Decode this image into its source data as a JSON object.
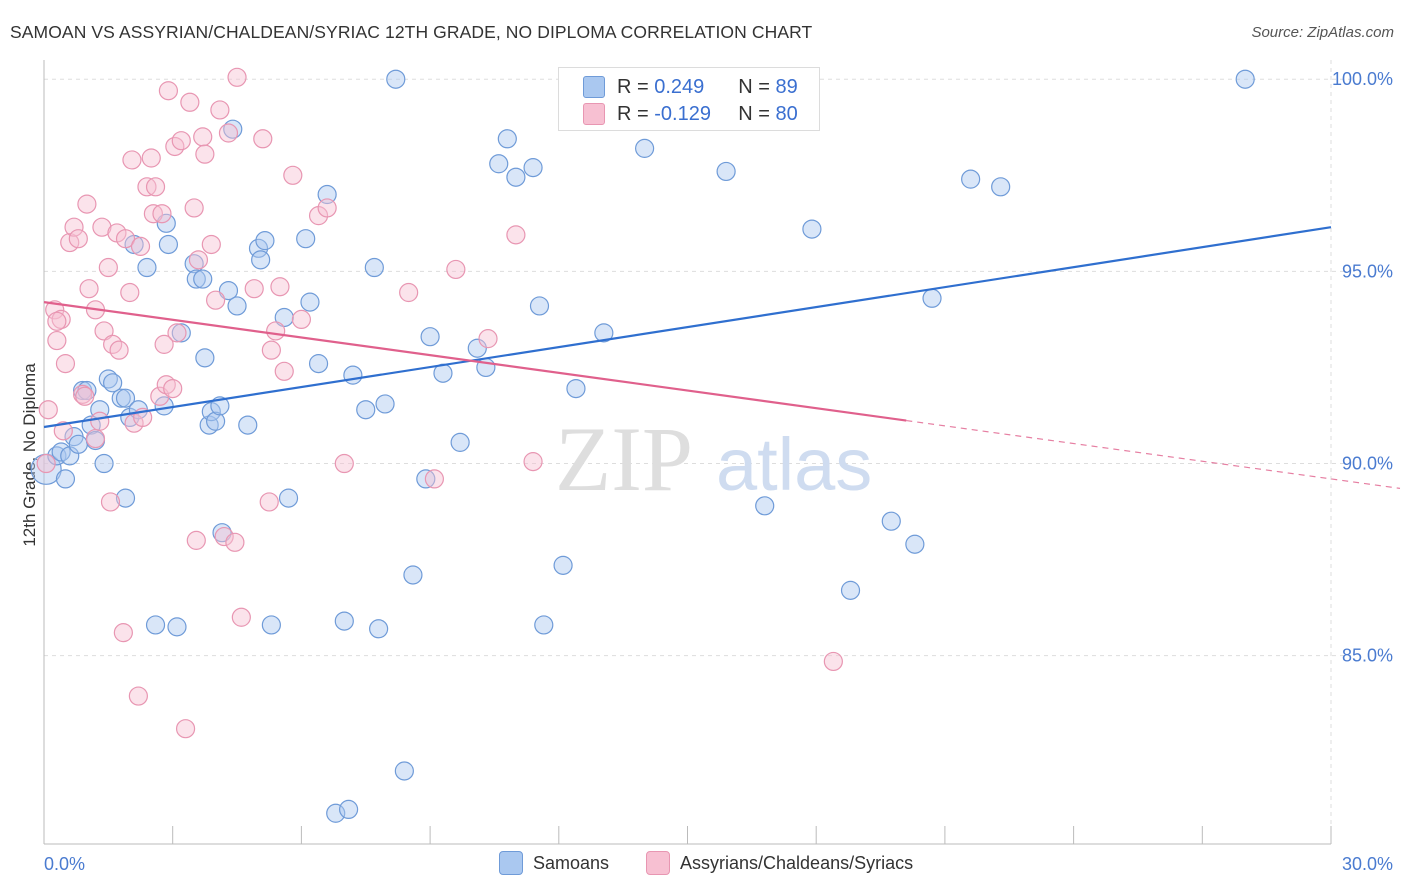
{
  "title": "SAMOAN VS ASSYRIAN/CHALDEAN/SYRIAC 12TH GRADE, NO DIPLOMA CORRELATION CHART",
  "source": "Source: ZipAtlas.com",
  "watermark": {
    "zip": "ZIP",
    "atlas": "atlas"
  },
  "colors": {
    "blue_fill": "#aac8f0",
    "blue_stroke": "#6f9bd8",
    "blue_line": "#2f6fcf",
    "pink_fill": "#f7c0d2",
    "pink_stroke": "#e896b2",
    "pink_line": "#e0608c",
    "tick_text": "#4a7bd0",
    "grid": "#dddddd"
  },
  "legend": {
    "rows": [
      {
        "r_label": "R =",
        "r_value": "0.249",
        "n_label": "N =",
        "n_value": "89",
        "color": "blue"
      },
      {
        "r_label": "R =",
        "r_value": "-0.129",
        "n_label": "N =",
        "n_value": "80",
        "color": "pink"
      }
    ]
  },
  "bottom_legend": [
    {
      "label": "Samoans",
      "color": "blue"
    },
    {
      "label": "Assyrians/Chaldeans/Syriacs",
      "color": "pink"
    }
  ],
  "chart_data": {
    "type": "scatter",
    "title": "SAMOAN VS ASSYRIAN/CHALDEAN/SYRIAC 12TH GRADE, NO DIPLOMA CORRELATION CHART",
    "xlabel": "",
    "ylabel": "12th Grade, No Diploma",
    "xlim": [
      0,
      30
    ],
    "ylim": [
      80.1,
      100.5
    ],
    "x_tick_labels": [
      {
        "value": 0,
        "label": "0.0%"
      },
      {
        "value": 30,
        "label": "30.0%"
      }
    ],
    "y_tick_labels": [
      {
        "value": 100,
        "label": "100.0%"
      },
      {
        "value": 95,
        "label": "95.0%"
      },
      {
        "value": 90,
        "label": "90.0%"
      },
      {
        "value": 85,
        "label": "85.0%"
      }
    ],
    "grid": true,
    "legend_position": "top-center",
    "series": [
      {
        "name": "Samoans",
        "color": "blue",
        "trend": {
          "x": [
            0,
            30
          ],
          "y": [
            90.95,
            96.15
          ],
          "dashed_from": null
        },
        "points": [
          [
            0.05,
            89.85
          ],
          [
            0.3,
            90.2
          ],
          [
            0.4,
            90.3
          ],
          [
            0.5,
            89.6
          ],
          [
            0.6,
            90.2
          ],
          [
            0.7,
            90.7
          ],
          [
            0.8,
            90.5
          ],
          [
            0.9,
            91.9
          ],
          [
            1.0,
            91.9
          ],
          [
            1.1,
            91.0
          ],
          [
            1.2,
            90.6
          ],
          [
            1.3,
            91.4
          ],
          [
            1.4,
            90.0
          ],
          [
            1.5,
            92.2
          ],
          [
            1.6,
            92.1
          ],
          [
            1.8,
            91.7
          ],
          [
            1.9,
            91.7
          ],
          [
            2.0,
            91.2
          ],
          [
            2.1,
            95.7
          ],
          [
            2.2,
            91.4
          ],
          [
            2.4,
            95.1
          ],
          [
            2.8,
            91.5
          ],
          [
            2.85,
            96.25
          ],
          [
            2.9,
            95.7
          ],
          [
            3.2,
            93.4
          ],
          [
            3.5,
            95.2
          ],
          [
            3.55,
            94.8
          ],
          [
            3.7,
            94.8
          ],
          [
            3.75,
            92.75
          ],
          [
            3.85,
            91.0
          ],
          [
            3.9,
            91.35
          ],
          [
            4.0,
            91.1
          ],
          [
            4.1,
            91.5
          ],
          [
            4.3,
            94.5
          ],
          [
            4.4,
            98.7
          ],
          [
            4.5,
            94.1
          ],
          [
            4.75,
            91.0
          ],
          [
            5.0,
            95.6
          ],
          [
            5.05,
            95.3
          ],
          [
            5.15,
            95.8
          ],
          [
            5.6,
            93.8
          ],
          [
            5.7,
            89.1
          ],
          [
            6.1,
            95.85
          ],
          [
            6.2,
            94.2
          ],
          [
            6.4,
            92.6
          ],
          [
            6.6,
            97.0
          ],
          [
            6.8,
            80.9
          ],
          [
            7.0,
            85.9
          ],
          [
            7.1,
            81.0
          ],
          [
            7.2,
            92.3
          ],
          [
            7.5,
            91.4
          ],
          [
            7.7,
            95.1
          ],
          [
            7.8,
            85.7
          ],
          [
            7.95,
            91.55
          ],
          [
            8.2,
            100.0
          ],
          [
            8.4,
            82.0
          ],
          [
            8.6,
            87.1
          ],
          [
            8.9,
            89.6
          ],
          [
            9.0,
            93.3
          ],
          [
            9.3,
            92.35
          ],
          [
            9.7,
            90.55
          ],
          [
            10.1,
            93.0
          ],
          [
            10.3,
            92.5
          ],
          [
            10.6,
            97.8
          ],
          [
            10.8,
            98.45
          ],
          [
            11.0,
            97.45
          ],
          [
            11.4,
            97.7
          ],
          [
            11.55,
            94.1
          ],
          [
            11.65,
            85.8
          ],
          [
            12.1,
            87.35
          ],
          [
            12.4,
            91.95
          ],
          [
            13.05,
            93.4
          ],
          [
            14.0,
            98.2
          ],
          [
            14.9,
            100.05
          ],
          [
            15.9,
            97.6
          ],
          [
            16.8,
            88.9
          ],
          [
            17.9,
            96.1
          ],
          [
            18.8,
            86.7
          ],
          [
            19.75,
            88.5
          ],
          [
            20.3,
            87.9
          ],
          [
            20.7,
            94.3
          ],
          [
            21.6,
            97.4
          ],
          [
            22.3,
            97.2
          ],
          [
            28.0,
            100.0
          ],
          [
            1.9,
            89.1
          ],
          [
            2.6,
            85.8
          ],
          [
            3.1,
            85.75
          ],
          [
            5.3,
            85.8
          ],
          [
            4.15,
            88.2
          ]
        ]
      },
      {
        "name": "Assyrians/Chaldeans/Syriacs",
        "color": "pink",
        "trend": {
          "x": [
            0,
            30
          ],
          "y": [
            94.2,
            89.6
          ],
          "dashed_from": 20.1
        },
        "points": [
          [
            0.05,
            90.0
          ],
          [
            0.1,
            91.4
          ],
          [
            0.25,
            94.0
          ],
          [
            0.3,
            93.2
          ],
          [
            0.4,
            93.75
          ],
          [
            0.5,
            92.6
          ],
          [
            0.6,
            95.75
          ],
          [
            0.7,
            96.15
          ],
          [
            0.8,
            95.85
          ],
          [
            0.9,
            91.8
          ],
          [
            0.95,
            91.75
          ],
          [
            1.0,
            96.75
          ],
          [
            1.05,
            94.55
          ],
          [
            1.2,
            90.65
          ],
          [
            1.3,
            91.1
          ],
          [
            1.35,
            96.15
          ],
          [
            1.4,
            93.45
          ],
          [
            1.5,
            95.1
          ],
          [
            1.55,
            89.0
          ],
          [
            1.6,
            93.1
          ],
          [
            1.7,
            96.0
          ],
          [
            1.75,
            92.95
          ],
          [
            1.85,
            85.6
          ],
          [
            1.9,
            95.85
          ],
          [
            2.0,
            94.45
          ],
          [
            2.05,
            97.9
          ],
          [
            2.1,
            91.05
          ],
          [
            2.2,
            83.95
          ],
          [
            2.25,
            95.65
          ],
          [
            2.3,
            91.2
          ],
          [
            2.4,
            97.2
          ],
          [
            2.5,
            97.95
          ],
          [
            2.55,
            96.5
          ],
          [
            2.6,
            97.2
          ],
          [
            2.7,
            91.75
          ],
          [
            2.75,
            96.5
          ],
          [
            2.85,
            92.05
          ],
          [
            2.9,
            99.7
          ],
          [
            3.0,
            91.95
          ],
          [
            3.05,
            98.25
          ],
          [
            3.1,
            93.4
          ],
          [
            3.2,
            98.4
          ],
          [
            3.3,
            83.1
          ],
          [
            3.4,
            99.4
          ],
          [
            3.5,
            96.65
          ],
          [
            3.55,
            88.0
          ],
          [
            3.6,
            95.3
          ],
          [
            3.7,
            98.5
          ],
          [
            3.75,
            98.05
          ],
          [
            3.9,
            95.7
          ],
          [
            4.0,
            94.25
          ],
          [
            4.1,
            99.2
          ],
          [
            4.2,
            88.1
          ],
          [
            4.3,
            98.6
          ],
          [
            4.45,
            87.95
          ],
          [
            4.5,
            100.05
          ],
          [
            4.6,
            86.0
          ],
          [
            4.9,
            94.55
          ],
          [
            5.1,
            98.45
          ],
          [
            5.25,
            89.0
          ],
          [
            5.3,
            92.95
          ],
          [
            5.4,
            93.45
          ],
          [
            5.5,
            94.6
          ],
          [
            5.6,
            92.4
          ],
          [
            5.8,
            97.5
          ],
          [
            6.0,
            93.75
          ],
          [
            6.4,
            96.45
          ],
          [
            6.6,
            96.65
          ],
          [
            7.0,
            90.0
          ],
          [
            8.5,
            94.45
          ],
          [
            9.1,
            89.6
          ],
          [
            9.6,
            95.05
          ],
          [
            10.35,
            93.25
          ],
          [
            11.0,
            95.95
          ],
          [
            11.4,
            90.05
          ],
          [
            18.4,
            84.85
          ],
          [
            0.3,
            93.7
          ],
          [
            0.45,
            90.85
          ],
          [
            1.2,
            94.0
          ],
          [
            2.8,
            93.1
          ]
        ]
      }
    ]
  }
}
